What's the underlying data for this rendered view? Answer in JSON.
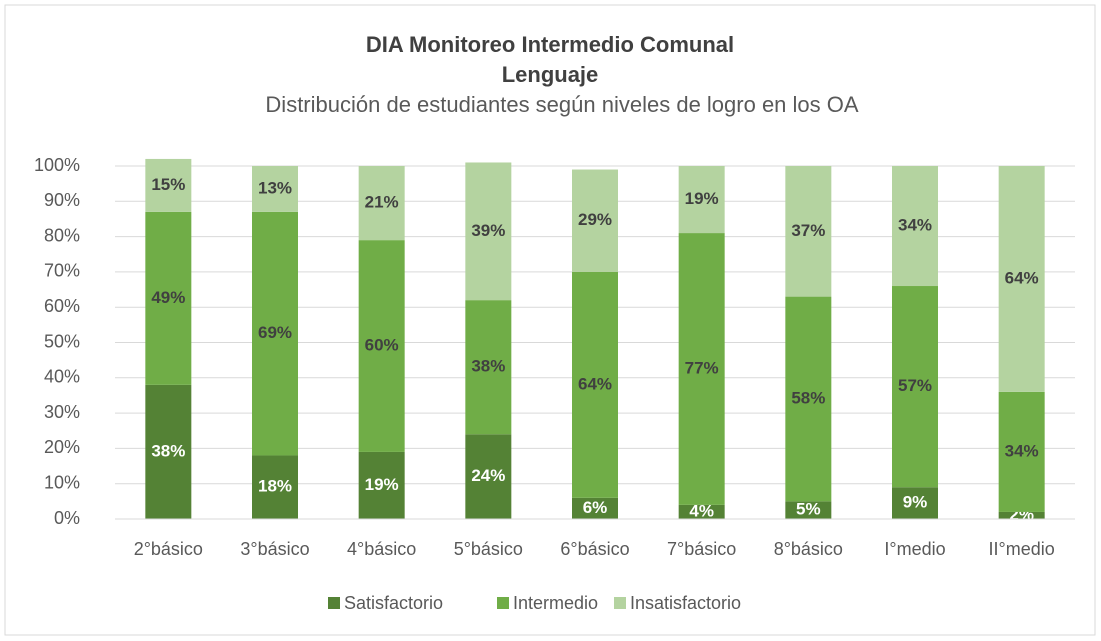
{
  "chart_data": {
    "type": "stacked_bar",
    "title": "DIA Monitoreo Intermedio Comunal",
    "subtitle": "Lenguaje",
    "description": "Distribución de estudiantes según niveles de logro en los OA",
    "categories": [
      "2°básico",
      "3°básico",
      "4°básico",
      "5°básico",
      "6°básico",
      "7°básico",
      "8°básico",
      "I°medio",
      "II°medio"
    ],
    "series": [
      {
        "name": "Satisfactorio",
        "color": "#548235",
        "values": [
          38,
          18,
          19,
          24,
          6,
          4,
          5,
          9,
          2
        ],
        "value_labels": [
          "38%",
          "18%",
          "19%",
          "24%",
          "6%",
          "4%",
          "5%",
          "9%",
          "2%"
        ]
      },
      {
        "name": "Intermedio",
        "color": "#70ad47",
        "values": [
          49,
          69,
          60,
          38,
          64,
          77,
          58,
          57,
          34
        ],
        "value_labels": [
          "49%",
          "69%",
          "60%",
          "38%",
          "64%",
          "77%",
          "58%",
          "57%",
          "34%"
        ]
      },
      {
        "name": "Insatisfactorio",
        "color": "#b4d3a0",
        "values": [
          15,
          13,
          21,
          39,
          29,
          19,
          37,
          34,
          64
        ],
        "value_labels": [
          "15%",
          "13%",
          "21%",
          "39%",
          "29%",
          "19%",
          "37%",
          "34%",
          "64%"
        ]
      }
    ],
    "ylim": [
      0,
      100
    ],
    "yticks": [
      {
        "value": 0,
        "label": "0%"
      },
      {
        "value": 10,
        "label": "10%"
      },
      {
        "value": 20,
        "label": "20%"
      },
      {
        "value": 30,
        "label": "30%"
      },
      {
        "value": 40,
        "label": "40%"
      },
      {
        "value": 50,
        "label": "50%"
      },
      {
        "value": 60,
        "label": "60%"
      },
      {
        "value": 70,
        "label": "70%"
      },
      {
        "value": 80,
        "label": "80%"
      },
      {
        "value": 90,
        "label": "90%"
      },
      {
        "value": 100,
        "label": "100%"
      }
    ],
    "grid": true,
    "legend": "bottom"
  }
}
